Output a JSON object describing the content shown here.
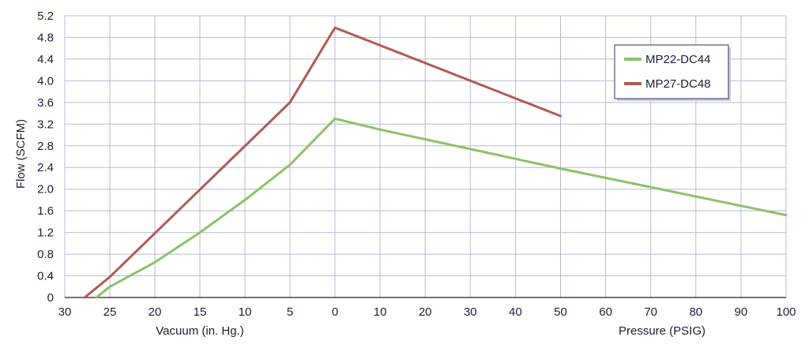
{
  "chart_data": {
    "type": "line",
    "title": "",
    "ylabel": "Flow (SCFM)",
    "x_sections": [
      {
        "label": "Vacuum (in. Hg.)",
        "ticks": [
          30,
          25,
          20,
          15,
          10,
          5,
          0
        ]
      },
      {
        "label": "Pressure (PSIG)",
        "ticks": [
          10,
          20,
          30,
          40,
          50,
          60,
          70,
          80,
          90,
          100
        ]
      }
    ],
    "ylim": [
      0,
      5.2
    ],
    "yticks": [
      "0",
      "0.4",
      "0.8",
      "1.2",
      "1.6",
      "2.0",
      "2.4",
      "2.8",
      "3.2",
      "3.6",
      "4.0",
      "4.4",
      "4.8",
      "5.2"
    ],
    "grid": true,
    "legend_position": "top-right",
    "series": [
      {
        "name": "MP22-DC44",
        "color": "#8cc16a",
        "points": [
          {
            "mode": "vacuum",
            "x": 26.5,
            "y": 0
          },
          {
            "mode": "vacuum",
            "x": 25,
            "y": 0.2
          },
          {
            "mode": "vacuum",
            "x": 20,
            "y": 0.65
          },
          {
            "mode": "vacuum",
            "x": 15,
            "y": 1.2
          },
          {
            "mode": "vacuum",
            "x": 10,
            "y": 1.8
          },
          {
            "mode": "vacuum",
            "x": 5,
            "y": 2.45
          },
          {
            "mode": "vacuum",
            "x": 0,
            "y": 3.3
          },
          {
            "mode": "pressure",
            "x": 10,
            "y": 3.1
          },
          {
            "mode": "pressure",
            "x": 50,
            "y": 2.38
          },
          {
            "mode": "pressure",
            "x": 100,
            "y": 1.52
          }
        ]
      },
      {
        "name": "MP27-DC48",
        "color": "#b05a52",
        "points": [
          {
            "mode": "vacuum",
            "x": 27.8,
            "y": 0
          },
          {
            "mode": "vacuum",
            "x": 25,
            "y": 0.38
          },
          {
            "mode": "vacuum",
            "x": 5,
            "y": 3.6
          },
          {
            "mode": "vacuum",
            "x": 0,
            "y": 4.98
          },
          {
            "mode": "pressure",
            "x": 50,
            "y": 3.35
          }
        ]
      }
    ]
  }
}
